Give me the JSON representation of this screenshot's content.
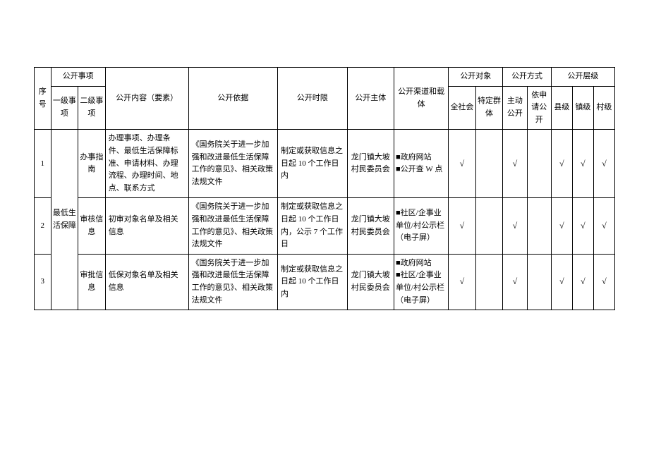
{
  "columns": {
    "seq": "序号",
    "open_item": "公开事项",
    "lvl1": "一级事项",
    "lvl2": "二级事项",
    "content": "公开内容（要素）",
    "basis": "公开依据",
    "timelimit": "公开时限",
    "subject": "公开主体",
    "channel": "公开渠道和载体",
    "target": "公开对象",
    "target_all": "全社会",
    "target_spec": "特定群体",
    "method": "公开方式",
    "method_active": "主动公开",
    "method_apply": "依申请公开",
    "level": "公开层级",
    "level_county": "县级",
    "level_town": "镇级",
    "level_village": "村级"
  },
  "lvl1_merged": "最低生活保障",
  "rows": [
    {
      "seq": "1",
      "lvl2": "办事指南",
      "content": "办理事项、办理条件、最低生活保障标准、申请材料、办理流程、办理时间、地点、联系方式",
      "basis": "《国务院关于进一步加强和改进最低生活保障工作的意见》、相关政策法规文件",
      "timelimit": "制定或获取信息之日起 10 个工作日内",
      "subject": "龙门镇大坡村民委员会",
      "channel": "■政府网站\n■公开查 W 点",
      "target_all": "√",
      "target_spec": "",
      "method_active": "√",
      "method_apply": "",
      "level_county": "√",
      "level_town": "√",
      "level_village": "√"
    },
    {
      "seq": "2",
      "lvl2": "审核信息",
      "content": "初审对象名单及相关信息",
      "basis": "《国务院关于进一步加强和改进最低生活保障工作的意见》、相关政策法规文件",
      "timelimit": "制定或获取信息之日起 10 个工作日内，公示 7 个工作日",
      "subject": "龙门镇大坡村民委员会",
      "channel": "■社区/企事业单位/村公示栏（电子屏）",
      "target_all": "√",
      "target_spec": "",
      "method_active": "√",
      "method_apply": "",
      "level_county": "√",
      "level_town": "√",
      "level_village": "√"
    },
    {
      "seq": "3",
      "lvl2": "审批信息",
      "content": "低保对象名单及相关信息",
      "basis": "《国务院关于进一步加强和改进最低生活保障工作的意见》、相关政策法规文件",
      "timelimit": "制定或获取信息之日起 10 个工作日内",
      "subject": "龙门镇大坡村民委员会",
      "channel": "■政府网站\n■社区/企事业单位/村公示栏（电子屏）",
      "target_all": "√",
      "target_spec": "",
      "method_active": "√",
      "method_apply": "",
      "level_county": "√",
      "level_town": "√",
      "level_village": "√"
    }
  ],
  "widths": {
    "seq": 22,
    "lvl1": 36,
    "lvl2": 36,
    "content": 110,
    "basis": 118,
    "timelimit": 92,
    "subject": 62,
    "channel": 72,
    "target_all": 36,
    "target_spec": 36,
    "method_active": 32,
    "method_apply": 32,
    "level_county": 28,
    "level_town": 28,
    "level_village": 28
  }
}
